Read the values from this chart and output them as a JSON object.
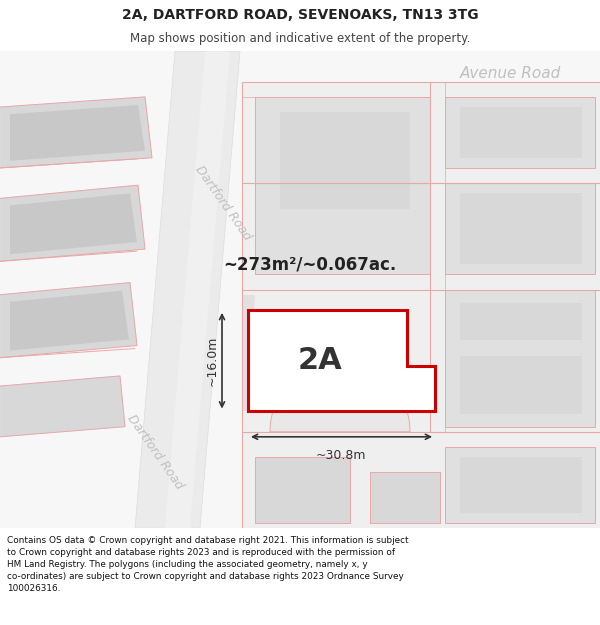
{
  "title_line1": "2A, DARTFORD ROAD, SEVENOAKS, TN13 3TG",
  "title_line2": "Map shows position and indicative extent of the property.",
  "footer_text": "Contains OS data © Crown copyright and database right 2021. This information is subject to Crown copyright and database rights 2023 and is reproduced with the permission of\nHM Land Registry. The polygons (including the associated geometry, namely x, y co-ordinates) are subject to Crown copyright and database rights 2023 Ordnance Survey\n100026316.",
  "area_label": "~273m²/~0.067ac.",
  "property_label": "2A",
  "dim_width": "~30.8m",
  "dim_height": "~16.0m",
  "road_label_upper": "Dartford Road",
  "road_label_lower": "Dartford Road",
  "road_label_top": "Avenue Road",
  "bg_white": "#ffffff",
  "map_bg": "#f7f7f7",
  "building_gray": "#d8d8d8",
  "plot_outline_gray": "#e0e0e0",
  "road_gray": "#e8e8e8",
  "pink_color": "#e8a8a8",
  "red_color": "#cc0000",
  "dim_color": "#333333",
  "road_label_color": "#c0c0c0",
  "text_color": "#222222",
  "border_color": "#cccccc"
}
